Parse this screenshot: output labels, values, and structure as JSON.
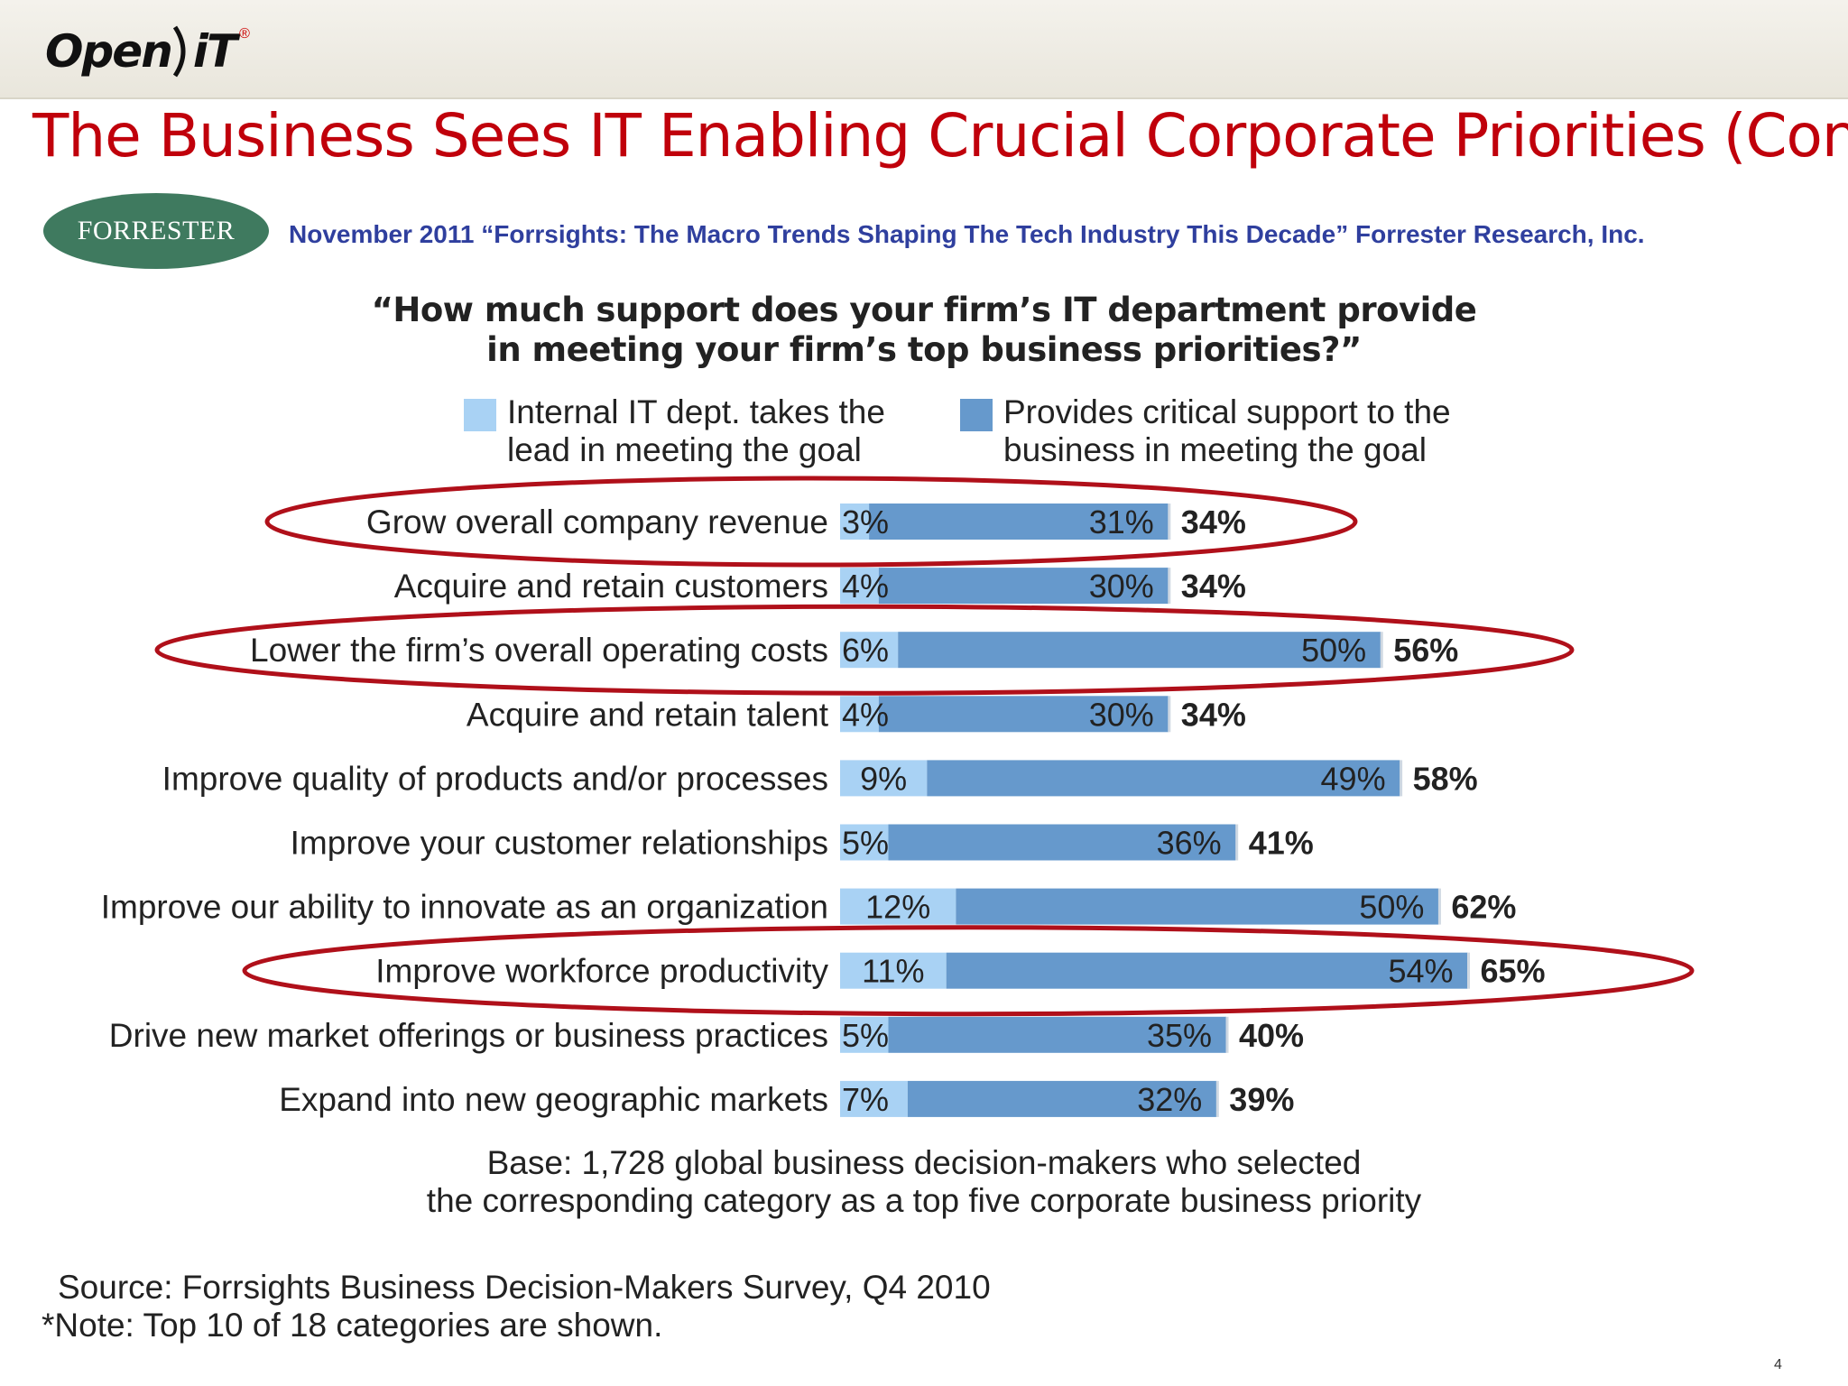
{
  "header": {
    "logo_text": "Open",
    "logo_it": "iT",
    "logo_reg": "®",
    "title": "The Business Sees IT Enabling Crucial Corporate Priorities (Cont.)"
  },
  "forrester_logo": "FORRESTER",
  "citation": "November 2011 “Forrsights: The Macro Trends Shaping The Tech Industry This Decade” Forrester Research, Inc.",
  "question_line1": "“How much support does your firm’s IT department provide",
  "question_line2": "in meeting your firm’s top business priorities?”",
  "legend": {
    "lead_line1": "Internal IT dept. takes the",
    "lead_line2": "lead in meeting the goal",
    "support_line1": "Provides critical support to the",
    "support_line2": "business in meeting the goal"
  },
  "colors": {
    "lead": "#a9d2f4",
    "support": "#6699cc",
    "highlight": "#b0101a",
    "title": "#c0000b"
  },
  "chart_data": {
    "type": "bar",
    "orientation": "horizontal",
    "stacked": true,
    "title": "“How much support does your firm’s IT department provide in meeting your firm’s top business priorities?”",
    "categories": [
      "Grow overall company revenue",
      "Acquire and retain customers",
      "Lower the firm’s overall operating costs",
      "Acquire and retain talent",
      "Improve quality of products and/or processes",
      "Improve your customer relationships",
      "Improve our ability to innovate as an organization",
      "Improve workforce productivity",
      "Drive new market offerings or business practices",
      "Expand into new geographic markets"
    ],
    "series": [
      {
        "name": "Internal IT dept. takes the lead in meeting the goal",
        "values": [
          3,
          4,
          6,
          4,
          9,
          5,
          12,
          11,
          5,
          7
        ]
      },
      {
        "name": "Provides critical support to the business in meeting the goal",
        "values": [
          31,
          30,
          50,
          30,
          49,
          36,
          50,
          54,
          35,
          32
        ]
      }
    ],
    "totals": [
      34,
      34,
      56,
      34,
      58,
      41,
      62,
      65,
      40,
      39
    ],
    "highlighted": [
      "Grow overall company revenue",
      "Lower the firm’s overall operating costs",
      "Improve workforce productivity"
    ],
    "legend_position": "top"
  },
  "footer": {
    "base_line1": "Base: 1,728 global business decision-makers who selected",
    "base_line2": "the corresponding category as a top five corporate business priority",
    "source": "Source: Forrsights Business Decision-Makers Survey, Q4 2010",
    "note": "*Note: Top 10 of 18 categories are shown.",
    "page_number": "4"
  }
}
